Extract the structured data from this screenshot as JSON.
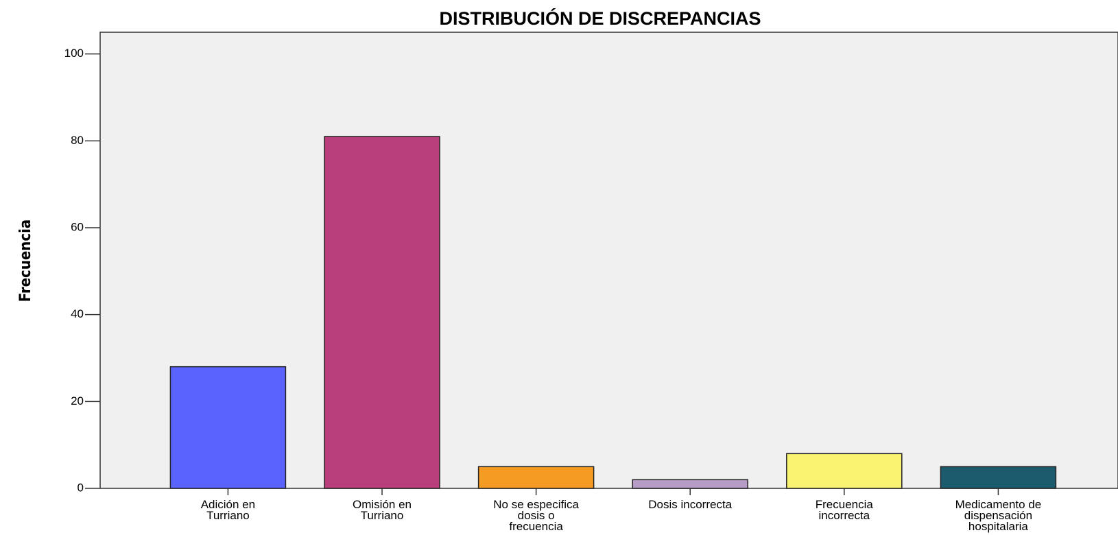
{
  "chart_data": {
    "type": "bar",
    "title": "DISTRIBUCIÓN DE DISCREPANCIAS",
    "y_label": "Frecuencia",
    "categories": [
      "Adición en\nTurriano",
      "Omisión en\nTurriano",
      "No se especifica\ndosis o\nfrecuencia",
      "Dosis incorrecta",
      "Frecuencia\nincorrecta",
      "Medicamento de\ndispensación\nhospitalaria"
    ],
    "values": [
      28,
      81,
      5,
      2,
      8,
      5
    ],
    "colors": [
      "#5b63fe",
      "#b83f7b",
      "#f59a23",
      "#b89cc8",
      "#f8f471",
      "#1c5a6e"
    ],
    "ylim": [
      0,
      105
    ],
    "yticks": [
      0,
      20,
      40,
      60,
      80,
      100
    ],
    "grid": false
  }
}
